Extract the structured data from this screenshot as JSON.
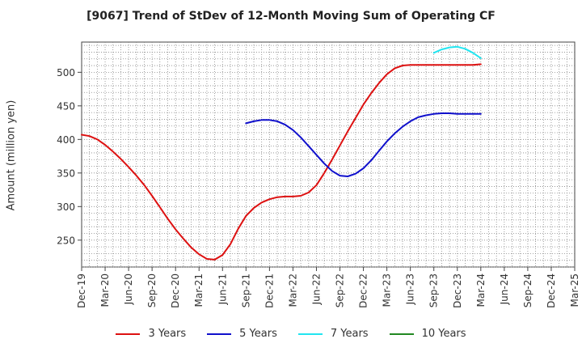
{
  "chart_data": {
    "type": "line",
    "title": "[9067]  Trend of StDev of 12-Month Moving Sum of Operating CF",
    "ylabel": "Amount (million yen)",
    "xlabel": "",
    "ylim": [
      210,
      545
    ],
    "yticks": [
      250,
      300,
      350,
      400,
      450,
      500
    ],
    "xticks": [
      "Dec-19",
      "Mar-20",
      "Jun-20",
      "Sep-20",
      "Dec-20",
      "Mar-21",
      "Jun-21",
      "Sep-21",
      "Dec-21",
      "Mar-22",
      "Jun-22",
      "Sep-22",
      "Dec-22",
      "Mar-23",
      "Jun-23",
      "Sep-23",
      "Dec-23",
      "Mar-24",
      "Jun-24",
      "Sep-24",
      "Dec-24",
      "Mar-25"
    ],
    "grid": true,
    "legend_position": "bottom",
    "series": [
      {
        "name": "3 Years",
        "color": "#dd1111",
        "x": [
          "Dec-19",
          "Jan-20",
          "Feb-20",
          "Mar-20",
          "Apr-20",
          "May-20",
          "Jun-20",
          "Jul-20",
          "Aug-20",
          "Sep-20",
          "Oct-20",
          "Nov-20",
          "Dec-20",
          "Jan-21",
          "Feb-21",
          "Mar-21",
          "Apr-21",
          "May-21",
          "Jun-21",
          "Jul-21",
          "Aug-21",
          "Sep-21",
          "Oct-21",
          "Nov-21",
          "Dec-21",
          "Jan-22",
          "Feb-22",
          "Mar-22",
          "Apr-22",
          "May-22",
          "Jun-22",
          "Jul-22",
          "Aug-22",
          "Sep-22",
          "Oct-22",
          "Nov-22",
          "Dec-22",
          "Jan-23",
          "Feb-23",
          "Mar-23",
          "Apr-23",
          "May-23",
          "Jun-23",
          "Jul-23",
          "Aug-23",
          "Sep-23",
          "Oct-23",
          "Nov-23",
          "Dec-23",
          "Jan-24",
          "Feb-24",
          "Mar-24"
        ],
        "values": [
          407,
          405,
          400,
          392,
          382,
          371,
          359,
          346,
          332,
          316,
          299,
          282,
          266,
          252,
          239,
          229,
          222,
          221,
          228,
          244,
          267,
          286,
          298,
          306,
          311,
          314,
          315,
          315,
          316,
          321,
          332,
          350,
          370,
          391,
          412,
          432,
          452,
          469,
          484,
          497,
          506,
          510,
          511,
          511,
          511,
          511,
          511,
          511,
          511,
          511,
          511,
          512
        ]
      },
      {
        "name": "5 Years",
        "color": "#1010cc",
        "x": [
          "Sep-21",
          "Oct-21",
          "Nov-21",
          "Dec-21",
          "Jan-22",
          "Feb-22",
          "Mar-22",
          "Apr-22",
          "May-22",
          "Jun-22",
          "Jul-22",
          "Aug-22",
          "Sep-22",
          "Oct-22",
          "Nov-22",
          "Dec-22",
          "Jan-23",
          "Feb-23",
          "Mar-23",
          "Apr-23",
          "May-23",
          "Jun-23",
          "Jul-23",
          "Aug-23",
          "Sep-23",
          "Oct-23",
          "Nov-23",
          "Dec-23",
          "Jan-24",
          "Feb-24",
          "Mar-24"
        ],
        "values": [
          424,
          427,
          429,
          429,
          427,
          422,
          414,
          403,
          390,
          377,
          364,
          353,
          346,
          345,
          349,
          357,
          369,
          383,
          397,
          409,
          419,
          427,
          433,
          436,
          438,
          439,
          439,
          438,
          438,
          438,
          438
        ]
      },
      {
        "name": "7 Years",
        "color": "#22e5f0",
        "x": [
          "Sep-23",
          "Oct-23",
          "Nov-23",
          "Dec-23",
          "Jan-24",
          "Feb-24",
          "Mar-24"
        ],
        "values": [
          529,
          534,
          537,
          538,
          535,
          529,
          521
        ]
      },
      {
        "name": "10 Years",
        "color": "#228822",
        "x": [],
        "values": []
      }
    ]
  }
}
